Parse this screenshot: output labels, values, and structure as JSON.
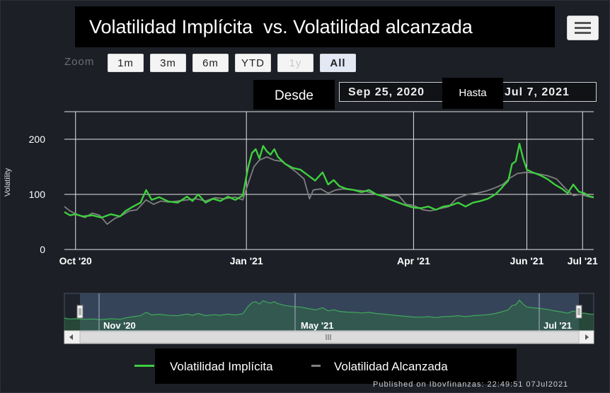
{
  "header": {
    "title": "Volatilidad Implícita  vs. Volatilidad alcanzada"
  },
  "range_selector": {
    "zoom_label": "Zoom",
    "buttons": [
      {
        "label": "1m",
        "state": "enabled"
      },
      {
        "label": "3m",
        "state": "enabled"
      },
      {
        "label": "6m",
        "state": "enabled"
      },
      {
        "label": "YTD",
        "state": "enabled"
      },
      {
        "label": "1y",
        "state": "disabled"
      },
      {
        "label": "All",
        "state": "selected"
      }
    ],
    "from_label": "Desde",
    "from_value": "Sep 25, 2020",
    "to_label": "Hasta",
    "to_value": "Jul 7, 2021"
  },
  "legend": {
    "implied_label": "Volatilidad Implícita",
    "realized_label": "Volatilidad Alcanzada"
  },
  "credit": "Published on Ibovfinanzas: 22:49:51 07Jul2021",
  "navigator": {
    "labels": [
      "Nov '20",
      "May '21",
      "Jul '21"
    ]
  },
  "colors": {
    "implied": "#3ecf3e",
    "realized": "#7f7f7f",
    "background": "#1c1f26"
  },
  "chart_data": {
    "type": "line",
    "title": "Volatilidad Implícita  vs. Volatilidad alcanzada",
    "xlabel": "",
    "ylabel": "Volatility",
    "ylim": [
      0,
      250
    ],
    "y_ticks": [
      0,
      100,
      200
    ],
    "x_range": [
      "2020-09-25",
      "2021-07-07"
    ],
    "x_ticks": [
      {
        "date": "2020-10-01",
        "label": "Oct '20"
      },
      {
        "date": "2021-01-01",
        "label": "Jan '21"
      },
      {
        "date": "2021-04-01",
        "label": "Apr '21"
      },
      {
        "date": "2021-06-01",
        "label": "Jun '21"
      },
      {
        "date": "2021-07-01",
        "label": "Jul '21"
      }
    ],
    "grid": true,
    "legend_position": "bottom",
    "series": [
      {
        "name": "Volatilidad Implícita",
        "points": [
          [
            "2020-09-25",
            68
          ],
          [
            "2020-09-28",
            62
          ],
          [
            "2020-10-01",
            64
          ],
          [
            "2020-10-05",
            60
          ],
          [
            "2020-10-10",
            62
          ],
          [
            "2020-10-15",
            58
          ],
          [
            "2020-10-20",
            64
          ],
          [
            "2020-10-25",
            60
          ],
          [
            "2020-10-28",
            70
          ],
          [
            "2020-11-01",
            78
          ],
          [
            "2020-11-05",
            85
          ],
          [
            "2020-11-08",
            108
          ],
          [
            "2020-11-11",
            90
          ],
          [
            "2020-11-15",
            95
          ],
          [
            "2020-11-20",
            87
          ],
          [
            "2020-11-25",
            85
          ],
          [
            "2020-11-30",
            96
          ],
          [
            "2020-12-03",
            88
          ],
          [
            "2020-12-06",
            100
          ],
          [
            "2020-12-10",
            85
          ],
          [
            "2020-12-14",
            92
          ],
          [
            "2020-12-18",
            88
          ],
          [
            "2020-12-22",
            96
          ],
          [
            "2020-12-26",
            90
          ],
          [
            "2020-12-30",
            98
          ],
          [
            "2021-01-02",
            150
          ],
          [
            "2021-01-04",
            175
          ],
          [
            "2021-01-06",
            182
          ],
          [
            "2021-01-08",
            165
          ],
          [
            "2021-01-10",
            188
          ],
          [
            "2021-01-12",
            178
          ],
          [
            "2021-01-14",
            172
          ],
          [
            "2021-01-16",
            182
          ],
          [
            "2021-01-18",
            168
          ],
          [
            "2021-01-22",
            155
          ],
          [
            "2021-01-26",
            148
          ],
          [
            "2021-01-30",
            145
          ],
          [
            "2021-02-03",
            135
          ],
          [
            "2021-02-07",
            125
          ],
          [
            "2021-02-11",
            140
          ],
          [
            "2021-02-14",
            118
          ],
          [
            "2021-02-17",
            126
          ],
          [
            "2021-02-20",
            115
          ],
          [
            "2021-02-24",
            110
          ],
          [
            "2021-02-28",
            108
          ],
          [
            "2021-03-04",
            104
          ],
          [
            "2021-03-08",
            108
          ],
          [
            "2021-03-12",
            100
          ],
          [
            "2021-03-16",
            96
          ],
          [
            "2021-03-20",
            90
          ],
          [
            "2021-03-24",
            85
          ],
          [
            "2021-03-28",
            80
          ],
          [
            "2021-04-01",
            76
          ],
          [
            "2021-04-05",
            75
          ],
          [
            "2021-04-09",
            78
          ],
          [
            "2021-04-13",
            72
          ],
          [
            "2021-04-17",
            78
          ],
          [
            "2021-04-21",
            80
          ],
          [
            "2021-04-25",
            85
          ],
          [
            "2021-04-29",
            78
          ],
          [
            "2021-05-03",
            85
          ],
          [
            "2021-05-07",
            88
          ],
          [
            "2021-05-11",
            92
          ],
          [
            "2021-05-15",
            100
          ],
          [
            "2021-05-18",
            110
          ],
          [
            "2021-05-20",
            118
          ],
          [
            "2021-05-22",
            125
          ],
          [
            "2021-05-24",
            155
          ],
          [
            "2021-05-26",
            160
          ],
          [
            "2021-05-28",
            192
          ],
          [
            "2021-05-30",
            165
          ],
          [
            "2021-06-01",
            145
          ],
          [
            "2021-06-04",
            140
          ],
          [
            "2021-06-08",
            135
          ],
          [
            "2021-06-12",
            128
          ],
          [
            "2021-06-16",
            118
          ],
          [
            "2021-06-20",
            110
          ],
          [
            "2021-06-23",
            102
          ],
          [
            "2021-06-26",
            118
          ],
          [
            "2021-06-29",
            105
          ],
          [
            "2021-07-02",
            102
          ],
          [
            "2021-07-05",
            96
          ],
          [
            "2021-07-07",
            95
          ]
        ]
      },
      {
        "name": "Volatilidad Alcanzada",
        "points": [
          [
            "2020-09-25",
            78
          ],
          [
            "2020-09-28",
            70
          ],
          [
            "2020-10-01",
            65
          ],
          [
            "2020-10-06",
            58
          ],
          [
            "2020-10-10",
            66
          ],
          [
            "2020-10-14",
            62
          ],
          [
            "2020-10-18",
            46
          ],
          [
            "2020-10-22",
            56
          ],
          [
            "2020-10-26",
            62
          ],
          [
            "2020-10-30",
            70
          ],
          [
            "2020-11-03",
            72
          ],
          [
            "2020-11-08",
            90
          ],
          [
            "2020-11-12",
            82
          ],
          [
            "2020-11-16",
            88
          ],
          [
            "2020-11-20",
            86
          ],
          [
            "2020-11-25",
            88
          ],
          [
            "2020-11-30",
            90
          ],
          [
            "2020-12-05",
            92
          ],
          [
            "2020-12-10",
            88
          ],
          [
            "2020-12-15",
            94
          ],
          [
            "2020-12-20",
            92
          ],
          [
            "2020-12-26",
            95
          ],
          [
            "2020-12-30",
            90
          ],
          [
            "2021-01-02",
            120
          ],
          [
            "2021-01-05",
            150
          ],
          [
            "2021-01-08",
            162
          ],
          [
            "2021-01-12",
            168
          ],
          [
            "2021-01-16",
            162
          ],
          [
            "2021-01-20",
            160
          ],
          [
            "2021-01-24",
            150
          ],
          [
            "2021-01-28",
            140
          ],
          [
            "2021-02-01",
            128
          ],
          [
            "2021-02-04",
            92
          ],
          [
            "2021-02-06",
            108
          ],
          [
            "2021-02-10",
            110
          ],
          [
            "2021-02-14",
            102
          ],
          [
            "2021-02-18",
            108
          ],
          [
            "2021-02-22",
            110
          ],
          [
            "2021-02-28",
            108
          ],
          [
            "2021-03-06",
            106
          ],
          [
            "2021-03-12",
            100
          ],
          [
            "2021-03-18",
            98
          ],
          [
            "2021-03-24",
            98
          ],
          [
            "2021-03-28",
            82
          ],
          [
            "2021-04-01",
            80
          ],
          [
            "2021-04-06",
            72
          ],
          [
            "2021-04-10",
            70
          ],
          [
            "2021-04-15",
            74
          ],
          [
            "2021-04-20",
            78
          ],
          [
            "2021-04-24",
            92
          ],
          [
            "2021-04-30",
            100
          ],
          [
            "2021-05-05",
            102
          ],
          [
            "2021-05-10",
            106
          ],
          [
            "2021-05-15",
            112
          ],
          [
            "2021-05-19",
            118
          ],
          [
            "2021-05-23",
            130
          ],
          [
            "2021-05-27",
            138
          ],
          [
            "2021-06-01",
            140
          ],
          [
            "2021-06-06",
            138
          ],
          [
            "2021-06-12",
            134
          ],
          [
            "2021-06-17",
            128
          ],
          [
            "2021-06-22",
            110
          ],
          [
            "2021-06-26",
            98
          ],
          [
            "2021-06-30",
            100
          ],
          [
            "2021-07-04",
            96
          ],
          [
            "2021-07-07",
            94
          ]
        ]
      }
    ]
  }
}
